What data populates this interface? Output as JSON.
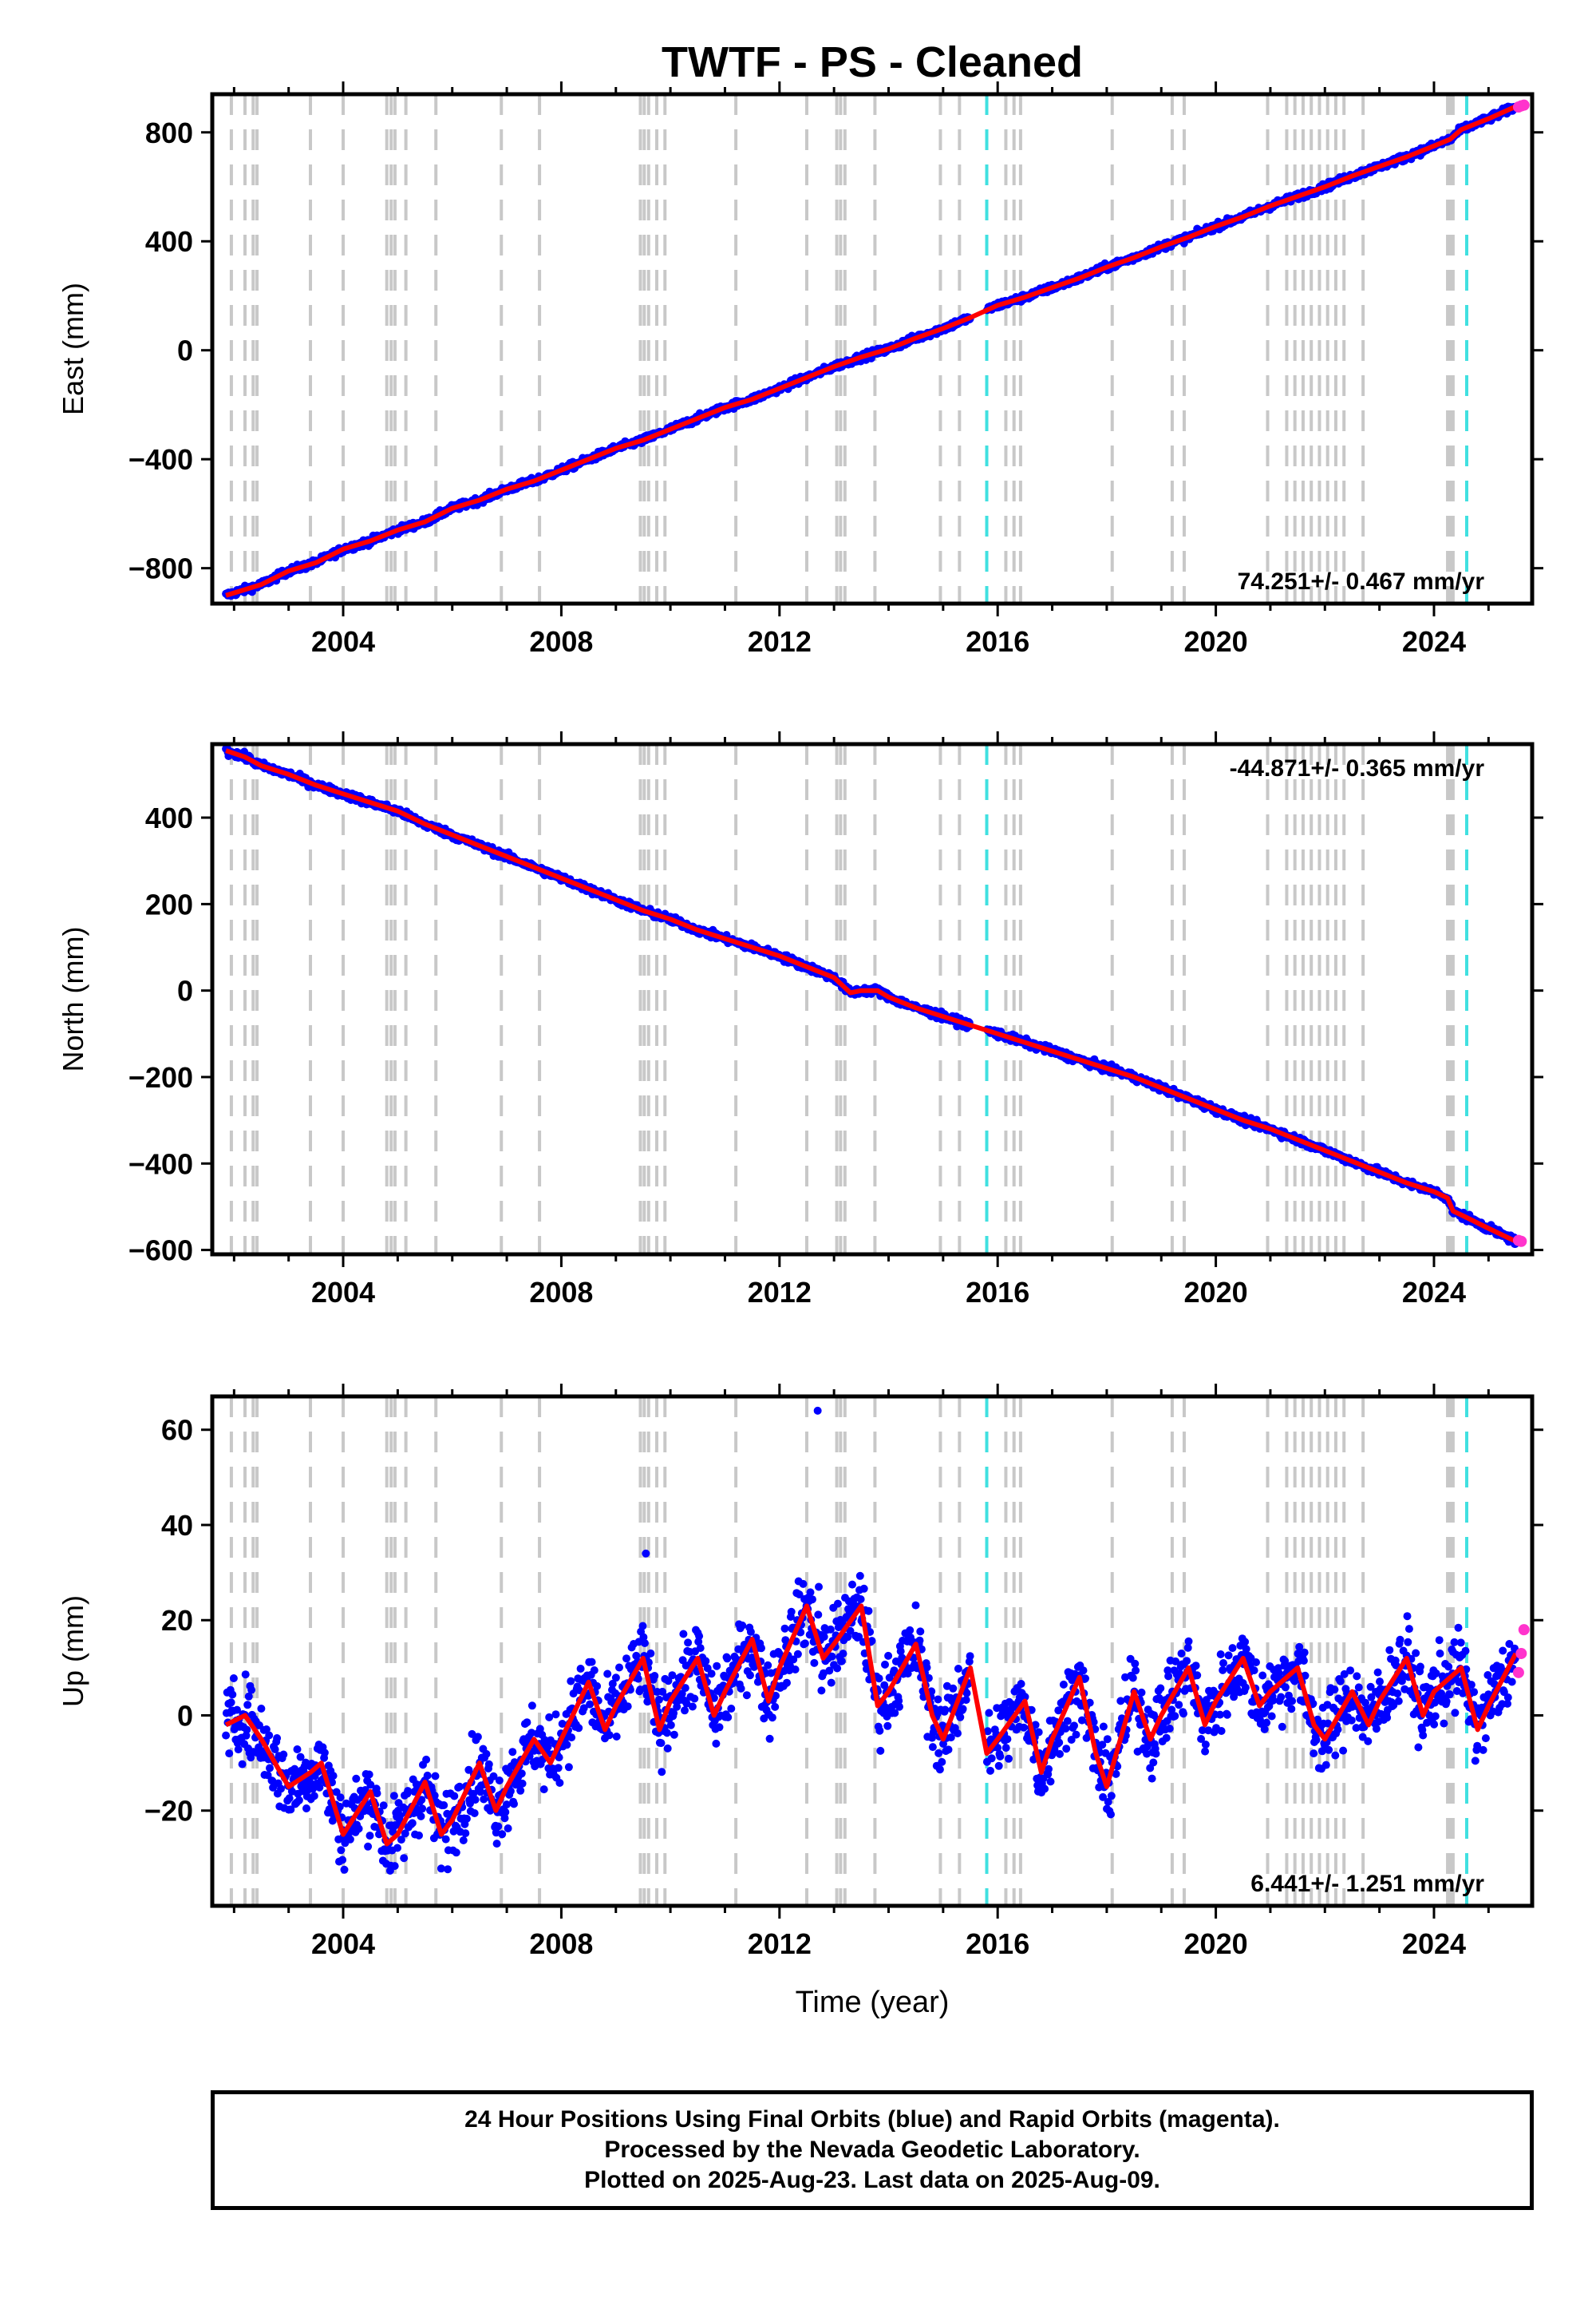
{
  "chart_data": {
    "type": "scatter",
    "title": "TWTF  - PS - Cleaned",
    "xlabel": "Time (year)",
    "xlim": [
      2001.6,
      2025.8
    ],
    "x_ticks": [
      "2004",
      "2008",
      "2012",
      "2016",
      "2020",
      "2024"
    ],
    "colors": {
      "final_orbits": "#0000ff",
      "rapid_orbits": "#ff33cc",
      "model": "#ff0000",
      "equipment_change": "#c8c8c8",
      "other_event": "#40e0e0"
    },
    "event_lines_gray": [
      2001.95,
      2002.2,
      2002.35,
      2002.42,
      2003.4,
      2004.0,
      2004.8,
      2004.88,
      2004.95,
      2005.15,
      2005.7,
      2006.9,
      2007.6,
      2009.45,
      2009.52,
      2009.6,
      2009.75,
      2009.9,
      2011.2,
      2012.5,
      2013.05,
      2013.12,
      2013.2,
      2013.75,
      2014.95,
      2015.3,
      2016.15,
      2016.3,
      2016.42,
      2018.1,
      2019.2,
      2019.42,
      2020.95,
      2021.3,
      2021.45,
      2021.6,
      2021.75,
      2021.9,
      2022.05,
      2022.2,
      2022.35,
      2022.7,
      2024.25,
      2024.3,
      2024.35
    ],
    "event_lines_cyan": [
      2015.8,
      2024.6
    ],
    "panels": [
      {
        "name": "East",
        "ylabel": "East (mm)",
        "ylim": [
          -930,
          940
        ],
        "y_ticks": [
          "800",
          "400",
          "0",
          "−400",
          "−800"
        ],
        "y_tick_values": [
          800,
          400,
          0,
          -400,
          -800
        ],
        "rate_text": "74.251+/- 0.467 mm/yr",
        "rate_position": "bottom-right",
        "data": {
          "x": [
            2001.85,
            2002.5,
            2003,
            2003.5,
            2004,
            2004.5,
            2005,
            2005.5,
            2006,
            2006.5,
            2007,
            2007.5,
            2008,
            2008.5,
            2009,
            2009.5,
            2010,
            2010.5,
            2011,
            2011.5,
            2012,
            2012.5,
            2013,
            2013.5,
            2014,
            2014.5,
            2015,
            2015.5,
            2016,
            2016.5,
            2017,
            2017.5,
            2018,
            2018.5,
            2019,
            2019.5,
            2020,
            2020.5,
            2021,
            2021.5,
            2022,
            2022.5,
            2023,
            2023.5,
            2024,
            2024.3,
            2024.5,
            2025,
            2025.5
          ],
          "y": [
            -900,
            -860,
            -810,
            -780,
            -730,
            -700,
            -660,
            -630,
            -580,
            -550,
            -510,
            -480,
            -440,
            -400,
            -360,
            -330,
            -290,
            -250,
            -210,
            -180,
            -140,
            -100,
            -60,
            -25,
            5,
            45,
            80,
            120,
            165,
            195,
            230,
            265,
            305,
            340,
            380,
            415,
            455,
            490,
            530,
            565,
            600,
            640,
            675,
            710,
            750,
            775,
            810,
            850,
            895
          ]
        },
        "rapid_orbits": {
          "x": [
            2025.55,
            2025.6,
            2025.65
          ],
          "y": [
            893,
            897,
            900
          ]
        }
      },
      {
        "name": "North",
        "ylabel": "North (mm)",
        "ylim": [
          -610,
          570
        ],
        "y_ticks": [
          "400",
          "200",
          "0",
          "−200",
          "−400",
          "−600"
        ],
        "y_tick_values": [
          400,
          200,
          0,
          -200,
          -400,
          -600
        ],
        "rate_text": "-44.871+/- 0.365 mm/yr",
        "rate_position": "top-right",
        "data": {
          "x": [
            2001.85,
            2002.2,
            2002.5,
            2003,
            2003.5,
            2004,
            2004.5,
            2005,
            2005.5,
            2006,
            2006.5,
            2007,
            2007.5,
            2008,
            2008.5,
            2009,
            2009.5,
            2010,
            2010.5,
            2011,
            2011.5,
            2012,
            2012.5,
            2013,
            2013.3,
            2013.5,
            2013.8,
            2014,
            2014.5,
            2015,
            2015.5,
            2016,
            2016.5,
            2017,
            2017.5,
            2018,
            2018.5,
            2019,
            2019.5,
            2020,
            2020.5,
            2021,
            2021.5,
            2022,
            2022.5,
            2023,
            2023.5,
            2024,
            2024.25,
            2024.35,
            2024.6,
            2025,
            2025.5
          ],
          "y": [
            555,
            540,
            520,
            500,
            475,
            455,
            435,
            415,
            385,
            360,
            335,
            310,
            285,
            260,
            235,
            210,
            185,
            165,
            140,
            120,
            100,
            80,
            55,
            30,
            -5,
            0,
            0,
            -15,
            -40,
            -60,
            -80,
            -100,
            -120,
            -140,
            -160,
            -180,
            -200,
            -225,
            -250,
            -275,
            -300,
            -320,
            -345,
            -370,
            -395,
            -420,
            -445,
            -465,
            -480,
            -510,
            -525,
            -550,
            -580
          ]
        },
        "rapid_orbits": {
          "x": [
            2025.55,
            2025.6
          ],
          "y": [
            -578,
            -580
          ]
        }
      },
      {
        "name": "Up",
        "ylabel": "Up (mm)",
        "ylim": [
          -40,
          67
        ],
        "y_ticks": [
          "60",
          "40",
          "20",
          "0",
          "−20"
        ],
        "y_tick_values": [
          60,
          40,
          20,
          0,
          -20
        ],
        "rate_text": "6.441+/- 1.251 mm/yr",
        "rate_position": "bottom-right",
        "data": {
          "x": [
            2001.85,
            2002.2,
            2002.5,
            2003,
            2003.4,
            2003.6,
            2004,
            2004.5,
            2004.8,
            2005,
            2005.5,
            2005.8,
            2006,
            2006.5,
            2006.8,
            2007,
            2007.5,
            2007.8,
            2008,
            2008.5,
            2008.8,
            2009,
            2009.5,
            2009.8,
            2010,
            2010.5,
            2010.8,
            2011,
            2011.5,
            2011.8,
            2012,
            2012.5,
            2012.8,
            2013,
            2013.5,
            2013.8,
            2014,
            2014.5,
            2014.8,
            2015,
            2015.5,
            2015.8,
            2016,
            2016.5,
            2016.8,
            2017,
            2017.5,
            2017.8,
            2018,
            2018.5,
            2018.8,
            2019,
            2019.5,
            2019.8,
            2020,
            2020.5,
            2020.8,
            2021,
            2021.5,
            2021.8,
            2022,
            2022.5,
            2022.8,
            2023,
            2023.5,
            2023.8,
            2024,
            2024.5,
            2024.8,
            2025,
            2025.5
          ],
          "y": [
            -2,
            0,
            -5,
            -15,
            -12,
            -10,
            -25,
            -16,
            -27,
            -25,
            -14,
            -25,
            -22,
            -10,
            -20,
            -15,
            -5,
            -10,
            -5,
            7,
            -3,
            2,
            12,
            -3,
            3,
            12,
            0,
            5,
            16,
            3,
            10,
            23,
            12,
            15,
            23,
            2,
            5,
            15,
            0,
            -5,
            10,
            -8,
            -5,
            3,
            -12,
            -5,
            8,
            -8,
            -15,
            5,
            -5,
            0,
            10,
            -2,
            3,
            12,
            2,
            5,
            10,
            -2,
            -5,
            5,
            -2,
            3,
            12,
            0,
            5,
            10,
            -3,
            2,
            13
          ]
        },
        "rapid_orbits": {
          "x": [
            2025.55,
            2025.6,
            2025.65
          ],
          "y": [
            9,
            13,
            18
          ]
        },
        "outliers": {
          "x": [
            2009.55,
            2012.7,
            2012.72
          ],
          "y": [
            34,
            64,
            27
          ]
        }
      }
    ],
    "footer": [
      "24 Hour Positions Using Final Orbits (blue) and Rapid Orbits (magenta).",
      "Processed by the Nevada Geodetic Laboratory.",
      "Plotted on 2025-Aug-23. Last data on 2025-Aug-09."
    ]
  }
}
